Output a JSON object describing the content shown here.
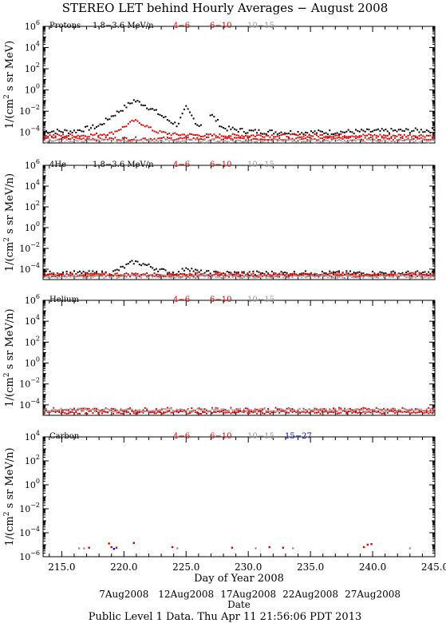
{
  "title": "STEREO LET behind Hourly Averages − August 2008",
  "footer": "Public Level 1 Data. Thu Apr 11 21:56:06 PDT 2013",
  "colors": {
    "black": "#000000",
    "red": "#dd0000",
    "gray": "#999999",
    "blue": "#0000ee"
  },
  "chart_data": [
    {
      "type": "scatter",
      "panel_label": "Protons",
      "ylabel": "1/(cm² s sr MeV)",
      "y_log": true,
      "ylim_exp": [
        -5,
        6
      ],
      "yticks_exp": [
        -4,
        -2,
        0,
        2,
        4,
        6
      ],
      "xlim": [
        213.5,
        245.0
      ],
      "legend": [
        {
          "text": "1.8−3.6 MeV/n",
          "color": "#000000"
        },
        {
          "text": "4−6",
          "color": "#dd0000"
        },
        {
          "text": "6−10",
          "color": "#dd0000"
        },
        {
          "text": "10−15",
          "color": "#999999"
        }
      ],
      "series": [
        {
          "name": "1.8−3.6 MeV/n",
          "color": "#000000",
          "x": [
            213.5,
            216.0,
            218.0,
            219.0,
            220.0,
            220.8,
            221.5,
            222.5,
            223.5,
            224.3,
            225.0,
            226.0,
            227.0,
            228.0,
            230.0,
            233.0,
            236.0,
            240.0,
            245.0
          ],
          "y_log10": [
            -3.9,
            -3.9,
            -3.4,
            -2.5,
            -1.7,
            -1.0,
            -1.3,
            -2.0,
            -2.8,
            -3.3,
            -1.7,
            -3.4,
            -2.3,
            -3.6,
            -3.9,
            -4.0,
            -4.0,
            -3.9,
            -3.8
          ]
        },
        {
          "name": "4−6",
          "color": "#dd0000",
          "x": [
            213.5,
            217.0,
            219.0,
            220.0,
            220.8,
            221.5,
            222.5,
            224.0,
            227.0,
            235.0,
            245.0
          ],
          "y_log10": [
            -4.3,
            -4.3,
            -4.1,
            -3.5,
            -2.9,
            -3.2,
            -3.9,
            -4.2,
            -4.3,
            -4.3,
            -4.3
          ]
        },
        {
          "name": "6−10",
          "color": "#dd0000",
          "x": [
            213.5,
            245.0
          ],
          "y_log10": [
            -4.6,
            -4.6
          ]
        },
        {
          "name": "10−15",
          "color": "#999999",
          "x": [
            213.5,
            245.0
          ],
          "y_log10": [
            -4.8,
            -4.8
          ]
        }
      ]
    },
    {
      "type": "scatter",
      "panel_label": "4He",
      "ylabel": "1/(cm² s sr MeV/n)",
      "y_log": true,
      "ylim_exp": [
        -5,
        6
      ],
      "yticks_exp": [
        -4,
        -2,
        0,
        2,
        4,
        6
      ],
      "xlim": [
        213.5,
        245.0
      ],
      "legend": [
        {
          "text": "1.8−3.6 MeV/n",
          "color": "#000000"
        },
        {
          "text": "4−6",
          "color": "#dd0000"
        },
        {
          "text": "6−10",
          "color": "#dd0000"
        },
        {
          "text": "10−15",
          "color": "#999999"
        }
      ],
      "series": [
        {
          "name": "1.8−3.6 MeV/n",
          "color": "#000000",
          "x": [
            213.5,
            219.0,
            220.0,
            220.8,
            221.5,
            222.5,
            223.5,
            224.5,
            225.0,
            226.0,
            227.0,
            245.0
          ],
          "y_log10": [
            -4.4,
            -4.4,
            -3.8,
            -3.3,
            -3.5,
            -3.9,
            -4.3,
            -4.4,
            -3.8,
            -4.3,
            -4.4,
            -4.4
          ]
        },
        {
          "name": "4−6",
          "color": "#dd0000",
          "x": [
            213.5,
            245.0
          ],
          "y_log10": [
            -4.5,
            -4.5
          ]
        },
        {
          "name": "6−10",
          "color": "#dd0000",
          "x": [
            213.5,
            245.0
          ],
          "y_log10": [
            -4.6,
            -4.6
          ]
        },
        {
          "name": "10−15",
          "color": "#999999",
          "x": [
            213.5,
            245.0
          ],
          "y_log10": [
            -4.7,
            -4.7
          ]
        }
      ]
    },
    {
      "type": "scatter",
      "panel_label": "Helium",
      "ylabel": "1/(cm² s sr MeV/n)",
      "y_log": true,
      "ylim_exp": [
        -5,
        6
      ],
      "yticks_exp": [
        -4,
        -2,
        0,
        2,
        4,
        6
      ],
      "xlim": [
        213.5,
        245.0
      ],
      "legend": [
        {
          "text": "4−6",
          "color": "#dd0000"
        },
        {
          "text": "6−10",
          "color": "#dd0000"
        },
        {
          "text": "10−15",
          "color": "#999999"
        }
      ],
      "series": [
        {
          "name": "4−6",
          "color": "#dd0000",
          "x": [
            213.5,
            245.0
          ],
          "y_log10": [
            -4.5,
            -4.5
          ]
        },
        {
          "name": "6−10",
          "color": "#dd0000",
          "x": [
            213.5,
            245.0
          ],
          "y_log10": [
            -4.7,
            -4.7
          ]
        },
        {
          "name": "10−15",
          "color": "#999999",
          "x": [
            213.5,
            245.0
          ],
          "y_log10": [
            -4.5,
            -4.5
          ]
        }
      ]
    },
    {
      "type": "scatter",
      "panel_label": "Carbon",
      "ylabel": "1/(cm² s sr MeV/n)",
      "y_log": true,
      "ylim_exp": [
        -6,
        4
      ],
      "yticks_exp": [
        -6,
        -4,
        -2,
        0,
        2,
        4
      ],
      "xlim": [
        213.5,
        245.0
      ],
      "xticks": [
        215.0,
        220.0,
        225.0,
        230.0,
        235.0,
        240.0,
        245.0
      ],
      "xticklabels": [
        "215.0",
        "220.0",
        "225.0",
        "230.0",
        "235.0",
        "240.0",
        "245.0"
      ],
      "xlabel": "Day of Year 2008",
      "legend": [
        {
          "text": "4−6",
          "color": "#dd0000"
        },
        {
          "text": "6−10",
          "color": "#dd0000"
        },
        {
          "text": "10−15",
          "color": "#999999"
        },
        {
          "text": "15−27",
          "color": "#0000ee"
        }
      ],
      "points": [
        {
          "x": 216.4,
          "y_log10": -5.3,
          "color": "#999999"
        },
        {
          "x": 216.8,
          "y_log10": -5.3,
          "color": "#999999"
        },
        {
          "x": 217.2,
          "y_log10": -5.25,
          "color": "#dd0000"
        },
        {
          "x": 218.8,
          "y_log10": -4.9,
          "color": "#dd0000"
        },
        {
          "x": 219.0,
          "y_log10": -5.2,
          "color": "#dd0000"
        },
        {
          "x": 219.4,
          "y_log10": -5.25,
          "color": "#dd0000"
        },
        {
          "x": 219.2,
          "y_log10": -5.35,
          "color": "#0000ee"
        },
        {
          "x": 220.8,
          "y_log10": -4.85,
          "color": "#dd0000"
        },
        {
          "x": 223.9,
          "y_log10": -5.2,
          "color": "#dd0000"
        },
        {
          "x": 224.3,
          "y_log10": -5.3,
          "color": "#999999"
        },
        {
          "x": 228.7,
          "y_log10": -5.25,
          "color": "#dd0000"
        },
        {
          "x": 230.6,
          "y_log10": -5.3,
          "color": "#999999"
        },
        {
          "x": 231.7,
          "y_log10": -5.2,
          "color": "#dd0000"
        },
        {
          "x": 232.8,
          "y_log10": -5.25,
          "color": "#dd0000"
        },
        {
          "x": 233.6,
          "y_log10": -5.3,
          "color": "#999999"
        },
        {
          "x": 239.3,
          "y_log10": -5.2,
          "color": "#dd0000"
        },
        {
          "x": 239.6,
          "y_log10": -5.0,
          "color": "#dd0000"
        },
        {
          "x": 239.9,
          "y_log10": -4.95,
          "color": "#dd0000"
        },
        {
          "x": 243.0,
          "y_log10": -5.3,
          "color": "#999999"
        }
      ]
    }
  ],
  "date_axis": {
    "ticks": [
      {
        "day": 220.0,
        "label": "7Aug2008"
      },
      {
        "day": 225.0,
        "label": "12Aug2008"
      },
      {
        "day": 230.0,
        "label": "17Aug2008"
      },
      {
        "day": 235.0,
        "label": "22Aug2008"
      },
      {
        "day": 240.0,
        "label": "27Aug2008"
      }
    ],
    "label": "Date"
  }
}
